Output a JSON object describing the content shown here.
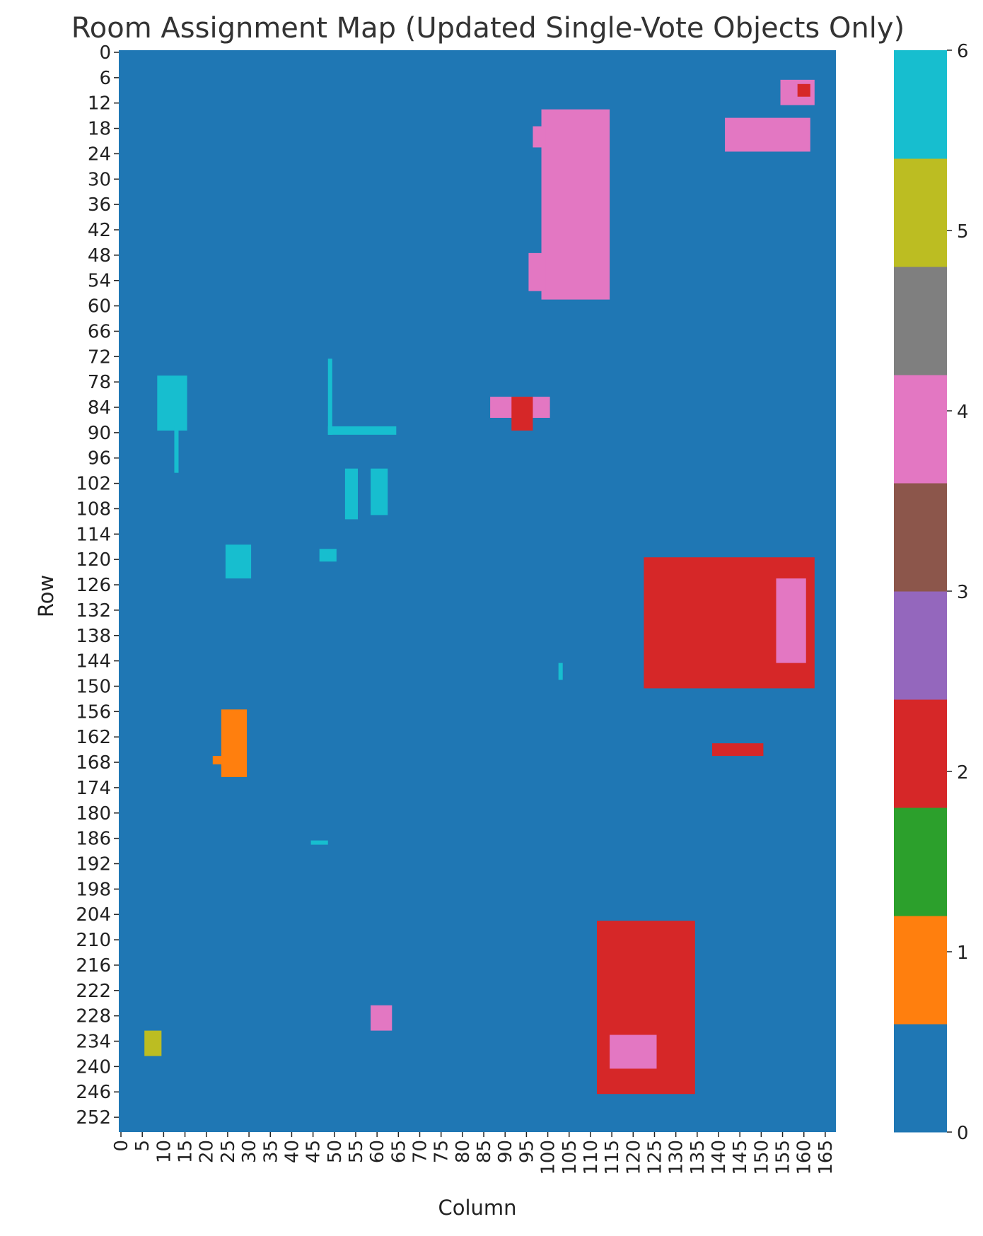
{
  "chart_data": {
    "type": "heatmap",
    "title": "Room Assignment Map (Updated Single-Vote Objects Only)",
    "xlabel": "Column",
    "ylabel": "Row",
    "n_rows": 256,
    "n_cols": 168,
    "x_ticks": [
      0,
      5,
      10,
      15,
      20,
      25,
      30,
      35,
      40,
      45,
      50,
      55,
      60,
      65,
      70,
      75,
      80,
      85,
      90,
      95,
      100,
      105,
      110,
      115,
      120,
      125,
      130,
      135,
      140,
      145,
      150,
      155,
      160,
      165
    ],
    "y_ticks": [
      0,
      6,
      12,
      18,
      24,
      30,
      36,
      42,
      48,
      54,
      60,
      66,
      72,
      78,
      84,
      90,
      96,
      102,
      108,
      114,
      120,
      126,
      132,
      138,
      144,
      150,
      156,
      162,
      168,
      174,
      180,
      186,
      192,
      198,
      204,
      210,
      216,
      222,
      228,
      234,
      240,
      246,
      252
    ],
    "colorbar": {
      "min": 0,
      "max": 6,
      "ticks": [
        0,
        1,
        2,
        3,
        4,
        5,
        6
      ],
      "colors": [
        "#1f77b4",
        "#ff7f0e",
        "#2ca02c",
        "#d62728",
        "#9467bd",
        "#8c564b",
        "#e377c2",
        "#7f7f7f",
        "#bcbd22",
        "#17becf"
      ]
    },
    "background_value": 0,
    "regions": [
      {
        "value": 4,
        "shape": "rect",
        "cols": [
          99,
          114
        ],
        "rows": [
          14,
          58
        ]
      },
      {
        "value": 4,
        "shape": "rect",
        "cols": [
          97,
          99
        ],
        "rows": [
          18,
          22
        ]
      },
      {
        "value": 4,
        "shape": "rect",
        "cols": [
          96,
          99
        ],
        "rows": [
          48,
          56
        ]
      },
      {
        "value": 4,
        "shape": "rect",
        "cols": [
          142,
          161
        ],
        "rows": [
          16,
          23
        ]
      },
      {
        "value": 4,
        "shape": "rect",
        "cols": [
          155,
          162
        ],
        "rows": [
          7,
          12
        ]
      },
      {
        "value": 2,
        "shape": "rect",
        "cols": [
          159,
          161
        ],
        "rows": [
          8,
          10
        ]
      },
      {
        "value": 4,
        "shape": "rect",
        "cols": [
          87,
          100
        ],
        "rows": [
          82,
          86
        ]
      },
      {
        "value": 2,
        "shape": "rect",
        "cols": [
          92,
          96
        ],
        "rows": [
          82,
          89
        ]
      },
      {
        "value": 6,
        "shape": "rect",
        "cols": [
          9,
          15
        ],
        "rows": [
          77,
          89
        ]
      },
      {
        "value": 6,
        "shape": "rect",
        "cols": [
          13,
          13
        ],
        "rows": [
          89,
          99
        ]
      },
      {
        "value": 6,
        "shape": "rect",
        "cols": [
          49,
          49
        ],
        "rows": [
          73,
          90
        ]
      },
      {
        "value": 6,
        "shape": "rect",
        "cols": [
          49,
          64
        ],
        "rows": [
          89,
          90
        ]
      },
      {
        "value": 6,
        "shape": "rect",
        "cols": [
          53,
          55
        ],
        "rows": [
          99,
          110
        ]
      },
      {
        "value": 6,
        "shape": "rect",
        "cols": [
          59,
          62
        ],
        "rows": [
          99,
          109
        ]
      },
      {
        "value": 6,
        "shape": "rect",
        "cols": [
          25,
          30
        ],
        "rows": [
          117,
          124
        ]
      },
      {
        "value": 6,
        "shape": "rect",
        "cols": [
          47,
          50
        ],
        "rows": [
          118,
          120
        ]
      },
      {
        "value": 6,
        "shape": "rect",
        "cols": [
          103,
          103
        ],
        "rows": [
          145,
          148
        ]
      },
      {
        "value": 6,
        "shape": "rect",
        "cols": [
          45,
          48
        ],
        "rows": [
          187,
          187
        ]
      },
      {
        "value": 2,
        "shape": "rect",
        "cols": [
          123,
          162
        ],
        "rows": [
          120,
          150
        ]
      },
      {
        "value": 4,
        "shape": "rect",
        "cols": [
          154,
          160
        ],
        "rows": [
          125,
          144
        ]
      },
      {
        "value": 1,
        "shape": "rect",
        "cols": [
          24,
          29
        ],
        "rows": [
          156,
          171
        ]
      },
      {
        "value": 1,
        "shape": "rect",
        "cols": [
          22,
          24
        ],
        "rows": [
          167,
          168
        ]
      },
      {
        "value": 2,
        "shape": "rect",
        "cols": [
          112,
          134
        ],
        "rows": [
          206,
          246
        ]
      },
      {
        "value": 4,
        "shape": "rect",
        "cols": [
          115,
          125
        ],
        "rows": [
          233,
          240
        ]
      },
      {
        "value": 5,
        "shape": "rect",
        "cols": [
          6,
          9
        ],
        "rows": [
          232,
          237
        ]
      },
      {
        "value": 4,
        "shape": "rect",
        "cols": [
          59,
          63
        ],
        "rows": [
          226,
          231
        ]
      },
      {
        "value": 2,
        "shape": "rect",
        "cols": [
          139,
          150
        ],
        "rows": [
          164,
          166
        ]
      }
    ]
  }
}
